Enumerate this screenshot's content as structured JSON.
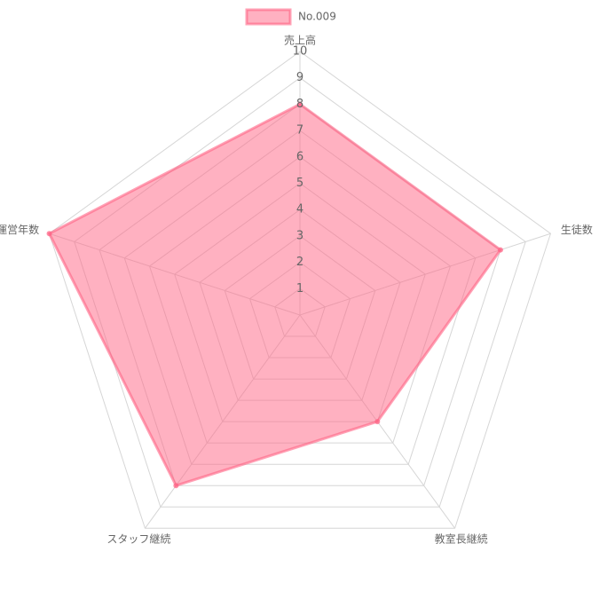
{
  "chart_data": {
    "type": "radar",
    "categories": [
      "売上高",
      "生徒数",
      "教室長継続",
      "スタッフ継続",
      "運営年数"
    ],
    "series": [
      {
        "name": "No.009",
        "color": "#ff6384",
        "values": [
          8,
          8,
          5,
          8,
          10
        ]
      }
    ],
    "ylim": [
      0,
      10
    ],
    "yticks": [
      1,
      2,
      3,
      4,
      5,
      6,
      7,
      8,
      9,
      10
    ],
    "grid": true,
    "legend": "top"
  }
}
